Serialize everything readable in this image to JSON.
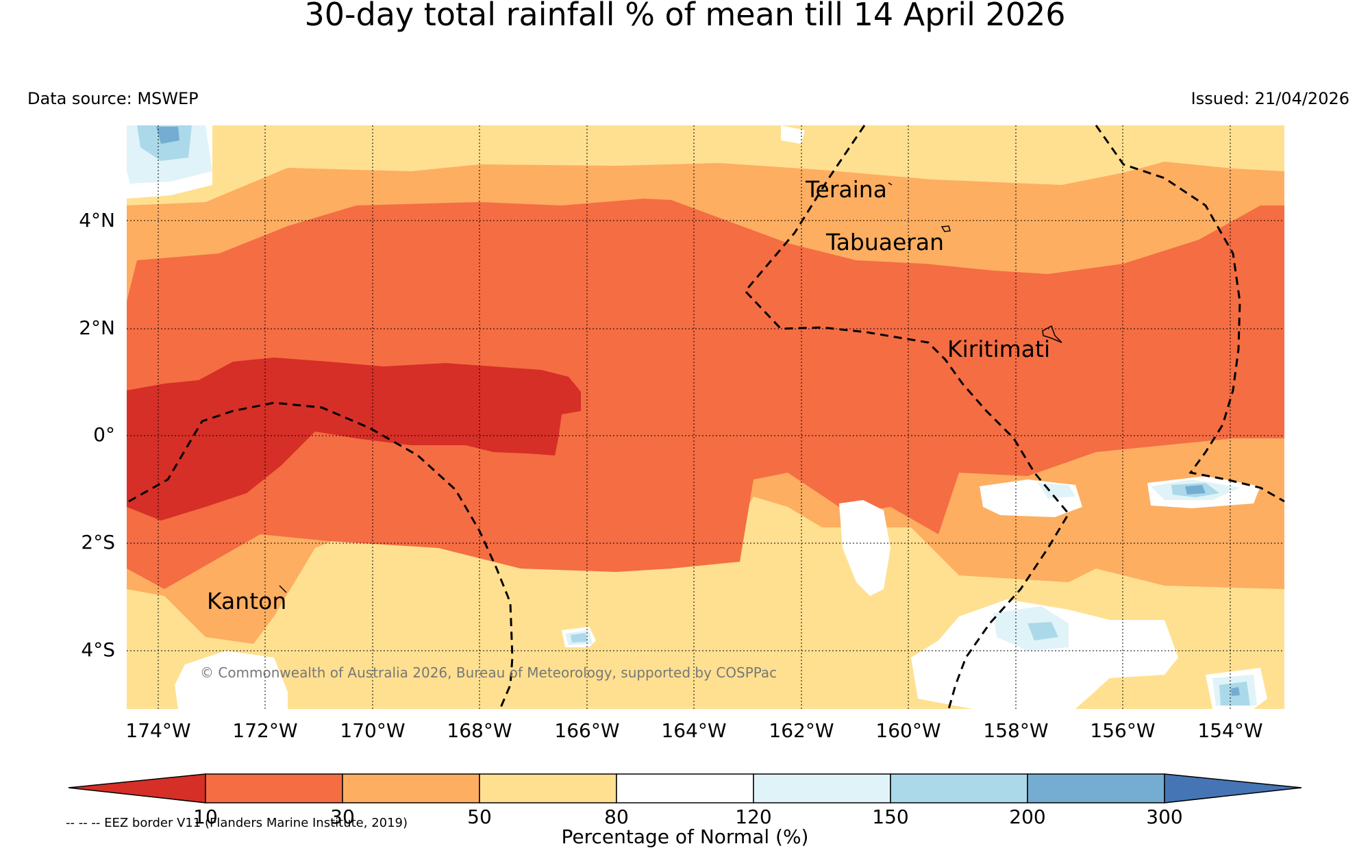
{
  "title": "30-day total rainfall % of mean till 14 April 2026",
  "data_source": "Data source: MSWEP",
  "issued": "Issued: 21/04/2026",
  "copyright": "© Commonwealth of Australia 2026, Bureau of Meteorology, supported by COSPPac",
  "eez_note": "-- -- -- EEZ border V11 (Flanders Marine Institute, 2019)",
  "lat_labels": [
    "4°N",
    "2°N",
    "0°",
    "2°S",
    "4°S"
  ],
  "lon_labels": [
    "174°W",
    "172°W",
    "170°W",
    "168°W",
    "166°W",
    "164°W",
    "162°W",
    "160°W",
    "158°W",
    "156°W",
    "154°W"
  ],
  "places": {
    "teraina": "Teraina",
    "tabuaeran": "Tabuaeran",
    "kiritimati": "Kiritimati",
    "kanton": "Kanton"
  },
  "colorbar": {
    "title": "Percentage of Normal (%)",
    "ticks": [
      "10",
      "30",
      "50",
      "80",
      "120",
      "150",
      "200",
      "300"
    ],
    "colors": {
      "lt10": "#d62f27",
      "c10_30": "#f46d43",
      "c30_50": "#fdae61",
      "c50_80": "#fee090",
      "c80_120": "#ffffff",
      "c120_150": "#e0f3f8",
      "c150_200": "#abd9e9",
      "c200_300": "#74add1",
      "gt300": "#4575b4"
    }
  }
}
